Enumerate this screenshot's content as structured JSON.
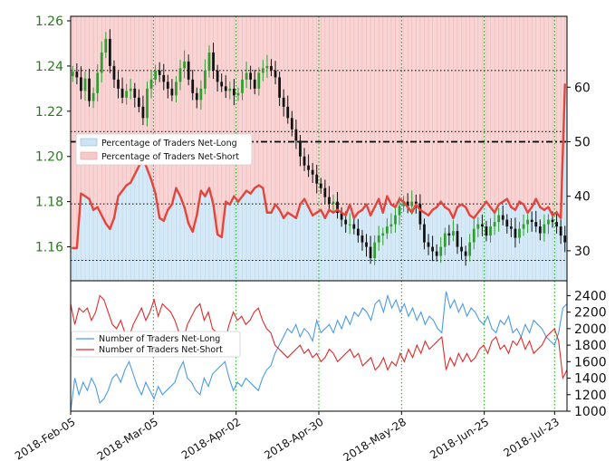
{
  "colors": {
    "long_fill": "#d6e9f7",
    "short_fill": "#f8d4d4",
    "long_line": "#5b9fd0",
    "short_line": "#e2453c",
    "bull": "#2f9e2f",
    "bear": "#111111",
    "grid": "#1aa11a",
    "count_long": "#4a9be6",
    "count_short": "#e02b2b"
  },
  "chart_data": [
    {
      "type": "candlestick",
      "name": "price",
      "ylim": [
        1.145,
        1.262
      ],
      "y_ticks": [
        "1.16",
        "1.18",
        "1.20",
        "1.22",
        "1.24",
        "1.26"
      ],
      "x_labels": [
        "2018-Feb-05",
        "2018-Mar-05",
        "2018-Apr-02",
        "2018-Apr-30",
        "2018-May-28",
        "2018-Jun-25",
        "2018-Jul-23"
      ],
      "dotted_levels": [
        1.238,
        1.211,
        1.179,
        1.154
      ],
      "closes": [
        1.2375,
        1.235,
        1.229,
        1.2345,
        1.2245,
        1.228,
        1.237,
        1.246,
        1.252,
        1.24,
        1.234,
        1.23,
        1.226,
        1.229,
        1.23,
        1.226,
        1.222,
        1.217,
        1.23,
        1.234,
        1.238,
        1.236,
        1.233,
        1.23,
        1.227,
        1.233,
        1.239,
        1.242,
        1.234,
        1.228,
        1.225,
        1.23,
        1.238,
        1.246,
        1.238,
        1.233,
        1.231,
        1.229,
        1.23,
        1.227,
        1.228,
        1.234,
        1.237,
        1.234,
        1.23,
        1.237,
        1.239,
        1.24,
        1.238,
        1.235,
        1.226,
        1.222,
        1.217,
        1.212,
        1.207,
        1.2,
        1.196,
        1.194,
        1.192,
        1.188,
        1.186,
        1.182,
        1.179,
        1.18,
        1.175,
        1.172,
        1.17,
        1.17,
        1.168,
        1.165,
        1.162,
        1.16,
        1.155,
        1.162,
        1.165,
        1.166,
        1.169,
        1.17,
        1.174,
        1.178,
        1.18,
        1.178,
        1.18,
        1.179,
        1.17,
        1.162,
        1.16,
        1.158,
        1.156,
        1.16,
        1.166,
        1.165,
        1.167,
        1.16,
        1.158,
        1.156,
        1.162,
        1.168,
        1.17,
        1.169,
        1.165,
        1.169,
        1.171,
        1.174,
        1.172,
        1.169,
        1.168,
        1.164,
        1.168,
        1.17,
        1.172,
        1.171,
        1.169,
        1.166,
        1.17,
        1.172,
        1.171,
        1.169,
        1.165,
        1.162
      ],
      "xlabel": "",
      "ylabel": ""
    },
    {
      "type": "area",
      "name": "positioning",
      "ylim": [
        24.5,
        73
      ],
      "y_ticks": [
        "30",
        "40",
        "50",
        "60"
      ],
      "threshold": 50,
      "legend": [
        "Percentage of Traders Net-Long",
        "Percentage of Traders Net-Short"
      ],
      "net_long_pct": [
        30.5,
        30.5,
        40.5,
        40.0,
        39.5,
        37.5,
        38.0,
        36.5,
        35.0,
        34.0,
        36.0,
        40.0,
        41.0,
        42.0,
        42.5,
        44.0,
        45.5,
        47.0,
        45.0,
        43.0,
        40.5,
        36.0,
        35.5,
        37.5,
        38.5,
        41.5,
        40.0,
        38.0,
        35.0,
        33.5,
        36.5,
        41.0,
        40.0,
        41.5,
        38.5,
        33.0,
        32.5,
        39.0,
        38.5,
        40.0,
        39.0,
        40.0,
        41.0,
        40.5,
        41.5,
        42.0,
        41.5,
        37.0,
        37.0,
        38.5,
        37.5,
        36.0,
        37.0,
        36.5,
        36.0,
        38.5,
        39.5,
        38.0,
        36.5,
        37.0,
        37.5,
        36.0,
        37.5,
        37.0,
        37.5,
        37.0,
        36.5,
        38.5,
        36.0,
        37.0,
        37.5,
        38.5,
        36.5,
        38.0,
        39.5,
        37.0,
        40.0,
        38.5,
        38.0,
        39.5,
        39.0,
        38.0,
        37.0,
        38.5,
        37.5,
        37.0,
        36.5,
        37.5,
        38.0,
        39.0,
        38.0,
        37.5,
        36.0,
        38.0,
        38.5,
        38.0,
        36.5,
        36.0,
        37.0,
        38.0,
        39.0,
        38.0,
        37.0,
        38.5,
        39.0,
        39.5,
        38.0,
        37.5,
        39.0,
        38.5,
        37.0,
        38.0,
        39.5,
        38.0,
        37.5,
        38.0,
        36.5,
        37.0,
        36.0,
        60.5
      ],
      "net_long_series": [
        30.5,
        30.5,
        40.5,
        40.0,
        39.5,
        37.5,
        38.0,
        36.5,
        35.0,
        34.0,
        36.0,
        40.0,
        41.0,
        42.0,
        42.5,
        44.0,
        45.5,
        47.0,
        45.0,
        43.0,
        40.5,
        36.0,
        35.5,
        37.5,
        38.5,
        41.5,
        40.0,
        38.0,
        35.0,
        33.5,
        36.5,
        41.0,
        40.0,
        41.5,
        38.5,
        33.0,
        32.5,
        39.0,
        38.5,
        40.0,
        39.0,
        40.0,
        41.0,
        40.5,
        41.5,
        42.0,
        41.5,
        37.0,
        37.0,
        38.5,
        37.5,
        36.0,
        37.0,
        36.5,
        36.0,
        38.5,
        39.5,
        38.0,
        36.5,
        37.0,
        37.5,
        36.0,
        37.5,
        37.0,
        37.5,
        37.0,
        36.5,
        38.5,
        36.0,
        37.0,
        37.5,
        38.5,
        36.5,
        38.0,
        39.5,
        37.0,
        40.0,
        38.5,
        38.0,
        39.5,
        39.0,
        38.0,
        37.0,
        38.5,
        37.5,
        37.0,
        36.5,
        37.5,
        38.0,
        39.0,
        38.0,
        37.5,
        36.0,
        38.0,
        38.5,
        38.0,
        36.5,
        36.0,
        37.0,
        38.0,
        39.0,
        38.0,
        37.0,
        38.5,
        39.0,
        39.5,
        38.0,
        37.5,
        39.0,
        38.5,
        37.0,
        38.0,
        39.5,
        38.0,
        37.5,
        38.0,
        36.5,
        37.0,
        36.0,
        60.5
      ]
    },
    {
      "type": "line",
      "name": "trader-counts",
      "ylim": [
        1000,
        2580
      ],
      "y_ticks": [
        "1000",
        "1200",
        "1400",
        "1600",
        "1800",
        "2000",
        "2200",
        "2400"
      ],
      "legend": [
        "Number of Traders Net-Long",
        "Number of Traders Net-Short"
      ],
      "net_long": [
        1000,
        1400,
        1200,
        1350,
        1250,
        1400,
        1300,
        1100,
        1150,
        1250,
        1400,
        1450,
        1350,
        1500,
        1600,
        1450,
        1300,
        1200,
        1350,
        1250,
        1150,
        1300,
        1200,
        1250,
        1300,
        1350,
        1500,
        1600,
        1400,
        1350,
        1250,
        1200,
        1400,
        1300,
        1450,
        1500,
        1550,
        1600,
        1400,
        1250,
        1350,
        1300,
        1400,
        1350,
        1300,
        1250,
        1400,
        1500,
        1550,
        1700,
        1800,
        1900,
        2000,
        1950,
        2050,
        1900,
        2000,
        1950,
        1850,
        2100,
        1950,
        2000,
        2050,
        1950,
        2100,
        2000,
        2150,
        2050,
        2200,
        2150,
        2250,
        2200,
        2100,
        2300,
        2350,
        2200,
        2400,
        2250,
        2350,
        2200,
        2300,
        2150,
        2250,
        2100,
        2200,
        2050,
        2150,
        2100,
        2000,
        1950,
        2450,
        2250,
        2350,
        2200,
        2300,
        2150,
        2250,
        2200,
        2100,
        2050,
        2150,
        2000,
        1950,
        2100,
        2050,
        2150,
        1950,
        2000,
        1900,
        2050,
        1950,
        2100,
        2050,
        2000,
        1900,
        1850,
        1800,
        1950,
        2250,
        2300
      ],
      "net_short": [
        2300,
        2050,
        2250,
        2200,
        2250,
        2100,
        2200,
        2400,
        2350,
        2200,
        2050,
        2000,
        2100,
        1950,
        1900,
        2050,
        2150,
        2250,
        2100,
        2200,
        2350,
        2150,
        2300,
        2250,
        2200,
        2100,
        1950,
        1850,
        2050,
        2150,
        2250,
        2300,
        2100,
        2200,
        2000,
        1950,
        1900,
        1850,
        2050,
        2200,
        2100,
        2150,
        2050,
        2100,
        2200,
        2250,
        2100,
        2000,
        1950,
        1800,
        1750,
        1700,
        1650,
        1700,
        1750,
        1800,
        1700,
        1750,
        1650,
        1700,
        1600,
        1650,
        1750,
        1700,
        1600,
        1650,
        1700,
        1750,
        1650,
        1700,
        1550,
        1600,
        1650,
        1500,
        1550,
        1650,
        1500,
        1600,
        1550,
        1700,
        1600,
        1750,
        1650,
        1800,
        1700,
        1850,
        1750,
        1800,
        1850,
        1900,
        1500,
        1650,
        1550,
        1700,
        1600,
        1700,
        1600,
        1650,
        1750,
        1800,
        1700,
        1850,
        1900,
        1750,
        1800,
        1700,
        1850,
        1800,
        1900,
        1750,
        1850,
        1700,
        1750,
        1800,
        1900,
        1950,
        2000,
        1850,
        1400,
        1500
      ]
    }
  ]
}
